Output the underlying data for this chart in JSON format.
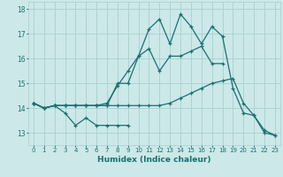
{
  "xlabel": "Humidex (Indice chaleur)",
  "xlim": [
    -0.5,
    23.5
  ],
  "ylim": [
    12.5,
    18.3
  ],
  "yticks": [
    13,
    14,
    15,
    16,
    17,
    18
  ],
  "xticks": [
    0,
    1,
    2,
    3,
    4,
    5,
    6,
    7,
    8,
    9,
    10,
    11,
    12,
    13,
    14,
    15,
    16,
    17,
    18,
    19,
    20,
    21,
    22,
    23
  ],
  "background_color": "#cce8e8",
  "grid_color": "#a8d0d0",
  "line_color": "#1a7070",
  "series": [
    {
      "x": [
        0,
        1,
        2,
        3,
        4,
        5,
        6,
        7,
        8,
        9
      ],
      "y": [
        14.2,
        14.0,
        14.1,
        13.8,
        13.3,
        13.6,
        13.3,
        13.3,
        13.3,
        13.3
      ]
    },
    {
      "x": [
        0,
        1,
        2,
        3,
        4,
        5,
        6,
        7,
        8,
        9,
        10,
        11,
        12,
        13,
        14,
        15,
        16,
        17,
        18
      ],
      "y": [
        14.2,
        14.0,
        14.1,
        14.1,
        14.1,
        14.1,
        14.1,
        14.2,
        14.9,
        15.5,
        16.1,
        16.4,
        15.5,
        16.1,
        16.1,
        16.3,
        16.5,
        15.8,
        15.8
      ]
    },
    {
      "x": [
        0,
        1,
        2,
        3,
        4,
        5,
        6,
        7,
        8,
        9,
        10,
        11,
        12,
        13,
        14,
        15,
        16,
        17,
        18,
        19,
        20,
        21,
        22,
        23
      ],
      "y": [
        14.2,
        14.0,
        14.1,
        14.1,
        14.1,
        14.1,
        14.1,
        14.1,
        15.0,
        15.0,
        16.1,
        17.2,
        17.6,
        16.6,
        17.8,
        17.3,
        16.6,
        17.3,
        16.9,
        14.8,
        13.8,
        13.7,
        13.0,
        12.9
      ]
    },
    {
      "x": [
        0,
        1,
        2,
        3,
        4,
        5,
        6,
        7,
        8,
        9,
        10,
        11,
        12,
        13,
        14,
        15,
        16,
        17,
        18,
        19,
        20,
        21,
        22,
        23
      ],
      "y": [
        14.2,
        14.0,
        14.1,
        14.1,
        14.1,
        14.1,
        14.1,
        14.1,
        14.1,
        14.1,
        14.1,
        14.1,
        14.1,
        14.2,
        14.4,
        14.6,
        14.8,
        15.0,
        15.1,
        15.2,
        14.2,
        13.7,
        13.1,
        12.9
      ]
    }
  ]
}
